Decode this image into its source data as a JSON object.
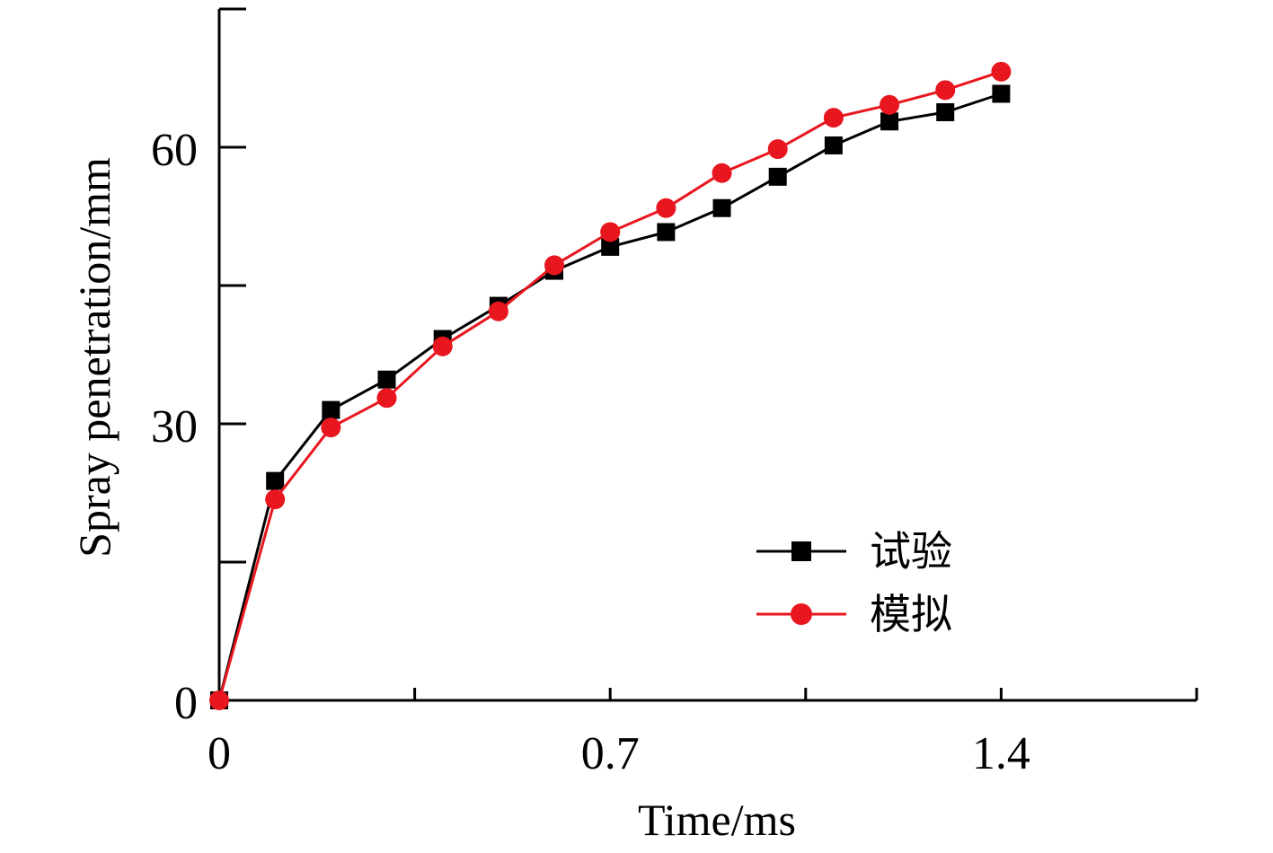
{
  "chart_data": {
    "type": "line",
    "xlabel": "Time/ms",
    "ylabel": "Spray penetration/mm",
    "xlim": [
      0,
      1.75
    ],
    "ylim": [
      0,
      75
    ],
    "x_ticks": [
      {
        "value": 0,
        "label": "0"
      },
      {
        "value": 0.35,
        "label": ""
      },
      {
        "value": 0.7,
        "label": "0.7"
      },
      {
        "value": 1.05,
        "label": ""
      },
      {
        "value": 1.4,
        "label": "1.4"
      },
      {
        "value": 1.75,
        "label": ""
      }
    ],
    "y_ticks": [
      {
        "value": 0,
        "label": "0"
      },
      {
        "value": 15,
        "label": ""
      },
      {
        "value": 30,
        "label": "30"
      },
      {
        "value": 45,
        "label": ""
      },
      {
        "value": 60,
        "label": "60"
      },
      {
        "value": 75,
        "label": ""
      }
    ],
    "grid": false,
    "legend_position": "bottom-right",
    "series": [
      {
        "name": "试验",
        "color": "#000000",
        "marker": "square",
        "x": [
          0,
          0.1,
          0.2,
          0.3,
          0.4,
          0.5,
          0.6,
          0.7,
          0.8,
          0.9,
          1.0,
          1.1,
          1.2,
          1.3,
          1.4
        ],
        "y": [
          0,
          23.8,
          31.5,
          34.8,
          39.2,
          42.8,
          46.6,
          49.2,
          50.8,
          53.4,
          56.8,
          60.2,
          62.8,
          63.8,
          65.8
        ]
      },
      {
        "name": "模拟",
        "color": "#e8161e",
        "marker": "circle",
        "x": [
          0,
          0.1,
          0.2,
          0.3,
          0.4,
          0.5,
          0.6,
          0.7,
          0.8,
          0.9,
          1.0,
          1.1,
          1.2,
          1.3,
          1.4
        ],
        "y": [
          0,
          21.8,
          29.6,
          32.8,
          38.4,
          42.2,
          47.2,
          50.8,
          53.4,
          57.2,
          59.8,
          63.2,
          64.6,
          66.2,
          68.2
        ]
      }
    ]
  }
}
